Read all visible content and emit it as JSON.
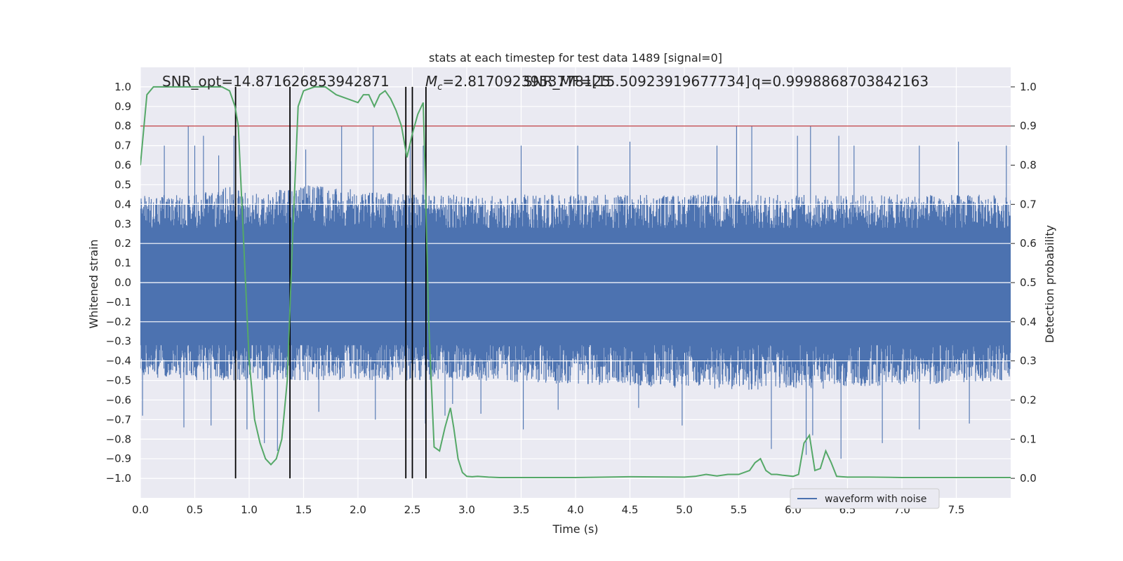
{
  "chart_data": {
    "type": "line",
    "title": "stats at each timestep for test data 1489 [signal=0]",
    "xlabel": "Time (s)",
    "ylabel_left": "Whitened strain",
    "ylabel_right": "Detection probability",
    "xlim": [
      0,
      8
    ],
    "ylim_left": [
      -1.1,
      1.1
    ],
    "ylim_right": [
      -0.05,
      1.05
    ],
    "x_ticks": [
      "0.0",
      "0.5",
      "1.0",
      "1.5",
      "2.0",
      "2.5",
      "3.0",
      "3.5",
      "4.0",
      "4.5",
      "5.0",
      "5.5",
      "6.0",
      "6.5",
      "7.0",
      "7.5"
    ],
    "y_ticks_left": [
      "1.0",
      "0.9",
      "0.8",
      "0.7",
      "0.6",
      "0.5",
      "0.4",
      "0.3",
      "0.2",
      "0.1",
      "0.0",
      "-0.1",
      "-0.2",
      "-0.3",
      "-0.4",
      "-0.5",
      "-0.6",
      "-0.7",
      "-0.8",
      "-0.9",
      "-1.0"
    ],
    "y_ticks_right": [
      "1.0",
      "0.9",
      "0.8",
      "0.7",
      "0.6",
      "0.5",
      "0.4",
      "0.3",
      "0.2",
      "0.1",
      "0.0"
    ],
    "grid": true,
    "legend_position": "bottom-right",
    "annotations": {
      "snr_opt": "SNR_opt=14.871626853942871",
      "mc_prefix": "M",
      "mc_sub": "c",
      "mc_value": "=2.8170923953778125",
      "snr_mf": "SNR_MF=[15.50923919677734]",
      "q": "q=0.9998868703842163"
    },
    "threshold": 0.9,
    "vertical_markers_s": [
      0.875,
      1.375,
      2.44,
      2.5,
      2.625
    ],
    "series": [
      {
        "name": "waveform with noise",
        "kind": "strain",
        "color": "#4c72b0",
        "envelope_upper": [
          [
            0.0,
            0.45
          ],
          [
            0.5,
            0.45
          ],
          [
            0.9,
            0.5
          ],
          [
            1.0,
            0.45
          ],
          [
            1.5,
            0.5
          ],
          [
            2.5,
            0.45
          ],
          [
            3.0,
            0.45
          ],
          [
            5.5,
            0.45
          ],
          [
            6.0,
            0.45
          ],
          [
            8.0,
            0.45
          ]
        ],
        "envelope_lower": [
          [
            0.0,
            -0.48
          ],
          [
            0.5,
            -0.5
          ],
          [
            1.0,
            -0.5
          ],
          [
            1.5,
            -0.5
          ],
          [
            2.5,
            -0.5
          ],
          [
            3.0,
            -0.5
          ],
          [
            5.5,
            -0.55
          ],
          [
            6.0,
            -0.55
          ],
          [
            8.0,
            -0.5
          ]
        ],
        "peaks_up": [
          [
            0.22,
            0.7
          ],
          [
            0.44,
            0.8
          ],
          [
            0.5,
            0.7
          ],
          [
            0.58,
            0.75
          ],
          [
            0.72,
            0.65
          ],
          [
            0.86,
            0.75
          ],
          [
            1.38,
            0.62
          ],
          [
            1.52,
            0.68
          ],
          [
            1.85,
            0.8
          ],
          [
            2.14,
            0.8
          ],
          [
            2.48,
            0.7
          ],
          [
            2.6,
            0.7
          ],
          [
            3.5,
            0.7
          ],
          [
            4.02,
            0.7
          ],
          [
            4.5,
            0.72
          ],
          [
            5.3,
            0.7
          ],
          [
            5.48,
            0.8
          ],
          [
            5.62,
            0.8
          ],
          [
            6.04,
            0.75
          ],
          [
            6.16,
            0.8
          ],
          [
            6.42,
            0.75
          ],
          [
            6.56,
            0.7
          ],
          [
            7.16,
            0.7
          ],
          [
            7.52,
            0.72
          ],
          [
            7.96,
            0.7
          ]
        ],
        "peaks_down": [
          [
            0.02,
            -0.68
          ],
          [
            0.4,
            -0.74
          ],
          [
            0.65,
            -0.73
          ],
          [
            0.98,
            -0.75
          ],
          [
            1.14,
            -0.82
          ],
          [
            1.26,
            -0.86
          ],
          [
            1.64,
            -0.66
          ],
          [
            2.16,
            -0.7
          ],
          [
            2.62,
            -0.72
          ],
          [
            2.8,
            -0.68
          ],
          [
            2.87,
            -0.62
          ],
          [
            3.13,
            -0.67
          ],
          [
            3.52,
            -0.75
          ],
          [
            3.84,
            -0.65
          ],
          [
            4.58,
            -0.64
          ],
          [
            4.98,
            -0.73
          ],
          [
            5.8,
            -0.85
          ],
          [
            6.12,
            -0.88
          ],
          [
            6.18,
            -0.78
          ],
          [
            6.44,
            -0.9
          ],
          [
            6.82,
            -0.82
          ],
          [
            7.16,
            -0.75
          ],
          [
            7.62,
            -0.72
          ]
        ]
      },
      {
        "name": "",
        "kind": "probability",
        "color": "#55a868",
        "x": [
          0.0,
          0.06,
          0.12,
          0.2,
          0.3,
          0.45,
          0.6,
          0.75,
          0.82,
          0.87,
          0.9,
          0.95,
          1.0,
          1.05,
          1.1,
          1.15,
          1.2,
          1.25,
          1.3,
          1.35,
          1.4,
          1.45,
          1.5,
          1.6,
          1.7,
          1.8,
          1.9,
          2.0,
          2.05,
          2.1,
          2.15,
          2.2,
          2.25,
          2.3,
          2.35,
          2.4,
          2.45,
          2.5,
          2.55,
          2.6,
          2.62,
          2.65,
          2.7,
          2.75,
          2.8,
          2.85,
          2.88,
          2.92,
          2.96,
          3.0,
          3.05,
          3.1,
          3.2,
          3.3,
          3.5,
          4.0,
          4.5,
          5.0,
          5.1,
          5.2,
          5.25,
          5.3,
          5.4,
          5.5,
          5.6,
          5.65,
          5.7,
          5.75,
          5.8,
          5.85,
          5.9,
          6.0,
          6.05,
          6.1,
          6.15,
          6.2,
          6.25,
          6.3,
          6.35,
          6.4,
          6.45,
          6.5,
          6.55,
          6.6,
          6.7,
          7.0,
          7.5,
          8.0
        ],
        "y": [
          0.8,
          0.98,
          1.0,
          1.0,
          1.0,
          1.0,
          1.0,
          1.0,
          0.99,
          0.95,
          0.9,
          0.6,
          0.3,
          0.15,
          0.09,
          0.05,
          0.035,
          0.05,
          0.1,
          0.25,
          0.62,
          0.95,
          0.99,
          1.0,
          1.0,
          0.98,
          0.97,
          0.96,
          0.98,
          0.98,
          0.95,
          0.98,
          0.99,
          0.97,
          0.94,
          0.9,
          0.82,
          0.88,
          0.93,
          0.96,
          0.75,
          0.4,
          0.08,
          0.07,
          0.13,
          0.18,
          0.13,
          0.05,
          0.015,
          0.005,
          0.004,
          0.005,
          0.003,
          0.002,
          0.002,
          0.002,
          0.004,
          0.003,
          0.005,
          0.01,
          0.008,
          0.006,
          0.01,
          0.01,
          0.02,
          0.04,
          0.05,
          0.02,
          0.01,
          0.01,
          0.008,
          0.005,
          0.01,
          0.09,
          0.11,
          0.02,
          0.025,
          0.07,
          0.04,
          0.005,
          0.004,
          0.003,
          0.003,
          0.003,
          0.003,
          0.002,
          0.002,
          0.002
        ]
      }
    ]
  }
}
